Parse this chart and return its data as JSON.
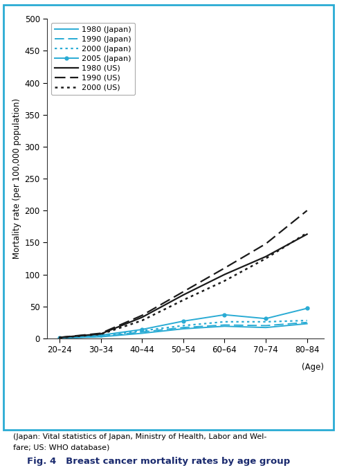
{
  "age_labels": [
    "20–24",
    "30–34",
    "40–44",
    "50–54",
    "60–64",
    "70–74",
    "80–84"
  ],
  "age_x": [
    0,
    1,
    2,
    3,
    4,
    5,
    6
  ],
  "japan_1980": [
    0.5,
    2.5,
    8.0,
    15.0,
    19.0,
    17.0,
    23.0
  ],
  "japan_1990": [
    0.5,
    3.0,
    10.0,
    17.0,
    21.0,
    20.0,
    25.0
  ],
  "japan_2000": [
    0.5,
    3.5,
    12.0,
    20.0,
    26.0,
    26.0,
    28.0
  ],
  "japan_2005": [
    1.0,
    5.0,
    14.0,
    27.0,
    37.0,
    31.0,
    47.0
  ],
  "us_1980": [
    1.5,
    7.0,
    33.0,
    68.0,
    100.0,
    128.0,
    163.0
  ],
  "us_1990": [
    1.5,
    8.0,
    36.0,
    73.0,
    110.0,
    148.0,
    200.0
  ],
  "us_2000": [
    1.0,
    6.5,
    28.0,
    60.0,
    90.0,
    125.0,
    165.0
  ],
  "japan_color": "#29ABD4",
  "us_color": "#1a1a1a",
  "ylim": [
    0,
    500
  ],
  "yticks": [
    0,
    50,
    100,
    150,
    200,
    250,
    300,
    350,
    400,
    450,
    500
  ],
  "ylabel": "Mortality rate (per 100,000 population)",
  "age_label": "(Age)",
  "caption": "(Japan: Vital statistics of Japan, Ministry of Health, Labor and Welfare; US: WHO database)",
  "figure_label": "Fig. 4   Breast cancer mortality rates by age group",
  "border_color": "#29ABD4",
  "figsize": [
    4.87,
    6.79
  ],
  "dpi": 100
}
